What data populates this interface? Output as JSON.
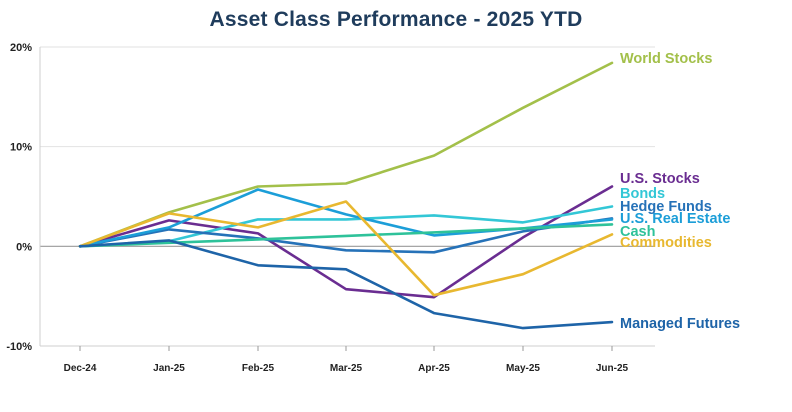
{
  "chart_data": {
    "type": "line",
    "title": "Asset Class Performance - 2025 YTD",
    "xlabel": "",
    "ylabel": "",
    "categories": [
      "Dec-24",
      "Jan-25",
      "Feb-25",
      "Mar-25",
      "Apr-25",
      "May-25",
      "Jun-25"
    ],
    "ylim": [
      -10,
      20
    ],
    "y_ticks": [
      20,
      10,
      0,
      -10
    ],
    "y_tick_labels": [
      "20%",
      "10%",
      "0%",
      "-10%"
    ],
    "grid": true,
    "legend": "right-end labels",
    "series": [
      {
        "name": "World Stocks",
        "color": "#a3c04a",
        "values": [
          0,
          3.4,
          6.0,
          6.3,
          9.1,
          13.9,
          18.4
        ]
      },
      {
        "name": "U.S. Stocks",
        "color": "#6a2d91",
        "values": [
          0,
          2.6,
          1.3,
          -4.3,
          -5.1,
          0.9,
          6.0
        ]
      },
      {
        "name": "Bonds",
        "color": "#33c7d6",
        "values": [
          0,
          0.5,
          2.7,
          2.7,
          3.1,
          2.4,
          4.0
        ]
      },
      {
        "name": "Hedge Funds",
        "color": "#2672b8",
        "values": [
          0,
          1.7,
          0.8,
          -0.4,
          -0.6,
          1.5,
          2.8
        ]
      },
      {
        "name": "U.S. Real Estate",
        "color": "#1c9ed8",
        "values": [
          0,
          1.9,
          5.7,
          3.2,
          1.1,
          1.8,
          2.7
        ]
      },
      {
        "name": "Cash",
        "color": "#2ec29a",
        "values": [
          0,
          0.35,
          0.7,
          1.05,
          1.4,
          1.8,
          2.2
        ]
      },
      {
        "name": "Commodities",
        "color": "#e8b830",
        "values": [
          0,
          3.3,
          1.9,
          4.5,
          -4.9,
          -2.8,
          1.2
        ]
      },
      {
        "name": "Managed Futures",
        "color": "#1e64a8",
        "values": [
          0,
          0.6,
          -1.9,
          -2.3,
          -6.7,
          -8.2,
          -7.6
        ]
      }
    ]
  }
}
